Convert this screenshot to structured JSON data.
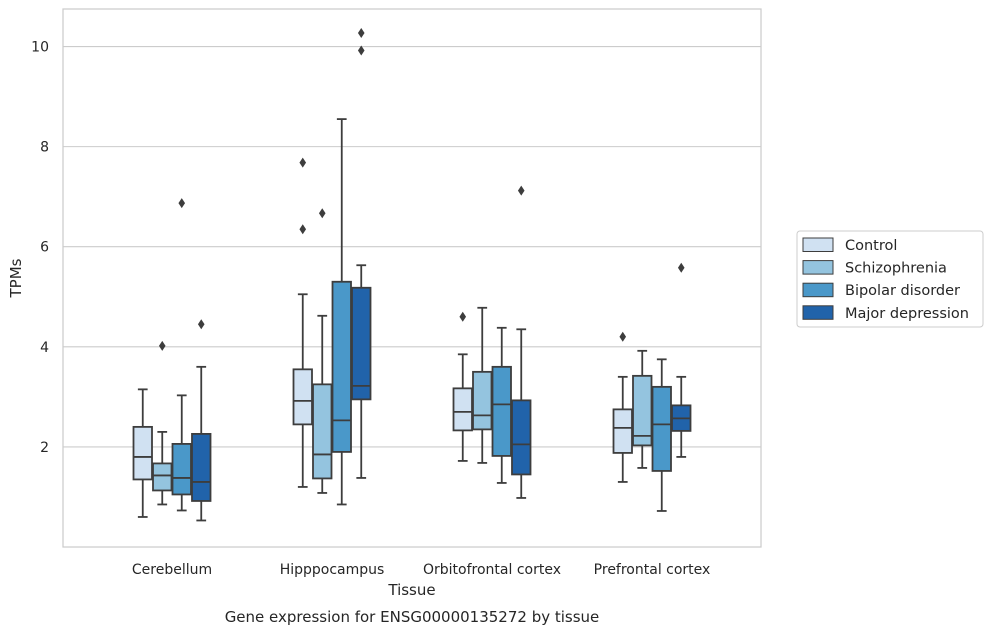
{
  "chart_data": {
    "type": "box",
    "title": "",
    "caption": "Gene expression for ENSG00000135272 by tissue",
    "xlabel": "Tissue",
    "ylabel": "TPMs",
    "ylim": [
      0.0,
      10.75
    ],
    "yticks": [
      2,
      4,
      6,
      8,
      10
    ],
    "grid": "horizontal",
    "legend_position": "right",
    "categories": [
      "Cerebellum",
      "Hipppocampus",
      "Orbitofrontal cortex",
      "Prefrontal cortex"
    ],
    "series": [
      {
        "name": "Control",
        "color": "#d0e1f2",
        "boxes": [
          {
            "whislo": 0.6,
            "q1": 1.35,
            "med": 1.8,
            "q3": 2.4,
            "whishi": 3.15,
            "fliers": []
          },
          {
            "whislo": 1.2,
            "q1": 2.45,
            "med": 2.92,
            "q3": 3.55,
            "whishi": 5.05,
            "fliers": [
              6.35,
              7.68
            ]
          },
          {
            "whislo": 1.72,
            "q1": 2.33,
            "med": 2.7,
            "q3": 3.17,
            "whishi": 3.85,
            "fliers": [
              4.6
            ]
          },
          {
            "whislo": 1.3,
            "q1": 1.88,
            "med": 2.38,
            "q3": 2.75,
            "whishi": 3.4,
            "fliers": [
              4.2
            ]
          }
        ]
      },
      {
        "name": "Schizophrenia",
        "color": "#94c4df",
        "boxes": [
          {
            "whislo": 0.85,
            "q1": 1.13,
            "med": 1.43,
            "q3": 1.67,
            "whishi": 2.3,
            "fliers": [
              4.02
            ]
          },
          {
            "whislo": 1.08,
            "q1": 1.37,
            "med": 1.85,
            "q3": 3.25,
            "whishi": 4.62,
            "fliers": [
              6.67
            ]
          },
          {
            "whislo": 1.68,
            "q1": 2.35,
            "med": 2.63,
            "q3": 3.5,
            "whishi": 4.78,
            "fliers": []
          },
          {
            "whislo": 1.58,
            "q1": 2.03,
            "med": 2.22,
            "q3": 3.42,
            "whishi": 3.92,
            "fliers": []
          }
        ]
      },
      {
        "name": "Bipolar disorder",
        "color": "#4a98c9",
        "boxes": [
          {
            "whislo": 0.73,
            "q1": 1.05,
            "med": 1.38,
            "q3": 2.06,
            "whishi": 3.03,
            "fliers": [
              6.87
            ]
          },
          {
            "whislo": 0.85,
            "q1": 1.9,
            "med": 2.53,
            "q3": 5.3,
            "whishi": 8.55,
            "fliers": []
          },
          {
            "whislo": 1.28,
            "q1": 1.82,
            "med": 2.85,
            "q3": 3.6,
            "whishi": 4.38,
            "fliers": []
          },
          {
            "whislo": 0.72,
            "q1": 1.52,
            "med": 2.45,
            "q3": 3.2,
            "whishi": 3.75,
            "fliers": []
          }
        ]
      },
      {
        "name": "Major depression",
        "color": "#2163aa",
        "boxes": [
          {
            "whislo": 0.53,
            "q1": 0.92,
            "med": 1.3,
            "q3": 2.26,
            "whishi": 3.6,
            "fliers": [
              4.45
            ]
          },
          {
            "whislo": 1.38,
            "q1": 2.95,
            "med": 3.22,
            "q3": 5.18,
            "whishi": 5.63,
            "fliers": [
              9.92,
              10.27
            ]
          },
          {
            "whislo": 0.98,
            "q1": 1.45,
            "med": 2.05,
            "q3": 2.93,
            "whishi": 4.35,
            "fliers": [
              7.12
            ]
          },
          {
            "whislo": 1.8,
            "q1": 2.32,
            "med": 2.57,
            "q3": 2.83,
            "whishi": 3.4,
            "fliers": [
              5.58
            ]
          }
        ]
      }
    ]
  }
}
